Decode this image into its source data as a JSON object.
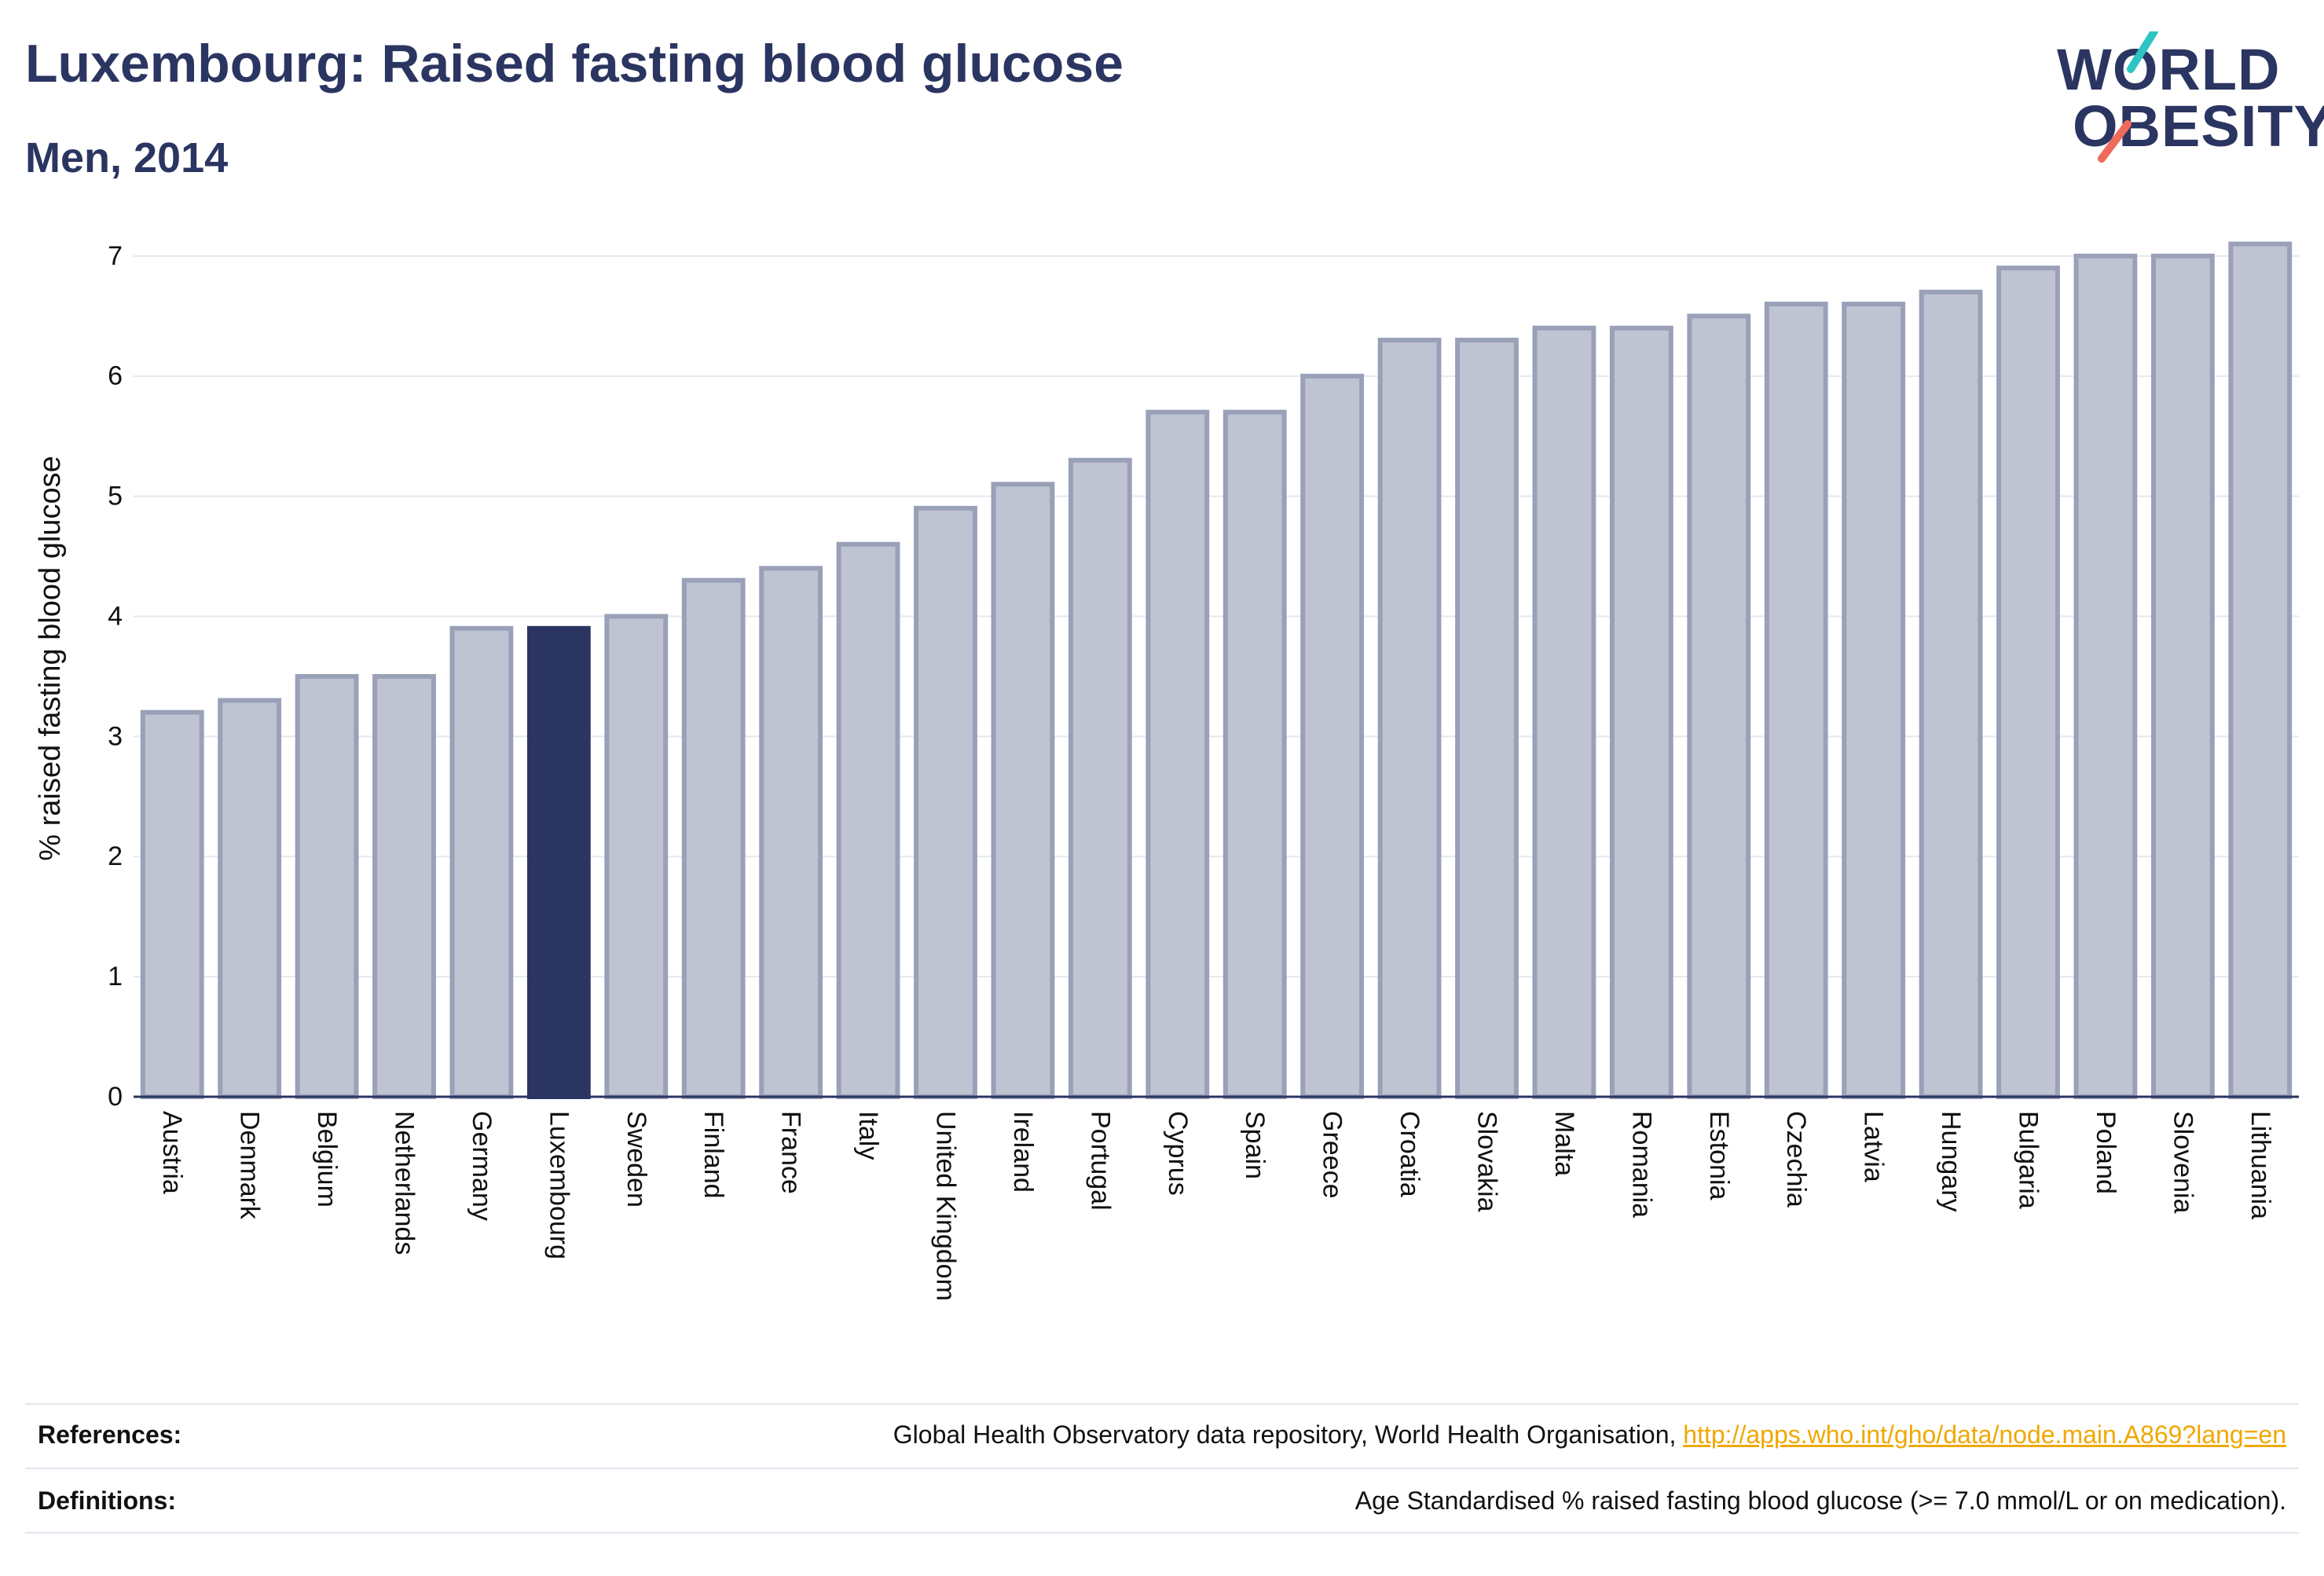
{
  "title": "Luxembourg: Raised fasting blood glucose",
  "subtitle": "Men, 2014",
  "logo": {
    "line1": "WORLD",
    "line2": "OBESITY"
  },
  "colors": {
    "highlight": "#2b3561",
    "bar_fill": "#bfc3d2",
    "bar_stroke": "#9aa0b8",
    "grid": "#e6e8ef",
    "link": "#f0a800",
    "logo_teal": "#2ec4c4",
    "logo_coral": "#ee6a5a"
  },
  "chart_data": {
    "type": "bar",
    "ylabel": "% raised fasting blood glucose",
    "xlabel": "",
    "ylim": [
      0,
      7.3
    ],
    "yticks": [
      "0",
      "1",
      "2",
      "3",
      "4",
      "5",
      "6",
      "7"
    ],
    "grid": "horizontal",
    "highlight": "Luxembourg",
    "categories": [
      "Austria",
      "Denmark",
      "Belgium",
      "Netherlands",
      "Germany",
      "Luxembourg",
      "Sweden",
      "Finland",
      "France",
      "Italy",
      "United Kingdom",
      "Ireland",
      "Portugal",
      "Cyprus",
      "Spain",
      "Greece",
      "Croatia",
      "Slovakia",
      "Malta",
      "Romania",
      "Estonia",
      "Czechia",
      "Latvia",
      "Hungary",
      "Bulgaria",
      "Poland",
      "Slovenia",
      "Lithuania"
    ],
    "values": [
      3.2,
      3.3,
      3.5,
      3.5,
      3.9,
      3.9,
      4.0,
      4.3,
      4.4,
      4.6,
      4.9,
      5.1,
      5.3,
      5.7,
      5.7,
      6.0,
      6.3,
      6.3,
      6.4,
      6.4,
      6.5,
      6.6,
      6.6,
      6.7,
      6.9,
      7.0,
      7.0,
      7.1
    ]
  },
  "footer": {
    "references_label": "References:",
    "references_text": "Global Health Observatory data repository, World Health Organisation, ",
    "references_link": "http://apps.who.int/gho/data/node.main.A869?lang=en",
    "definitions_label": "Definitions:",
    "definitions_text": "Age Standardised % raised fasting blood glucose (>= 7.0 mmol/L or on medication)."
  }
}
